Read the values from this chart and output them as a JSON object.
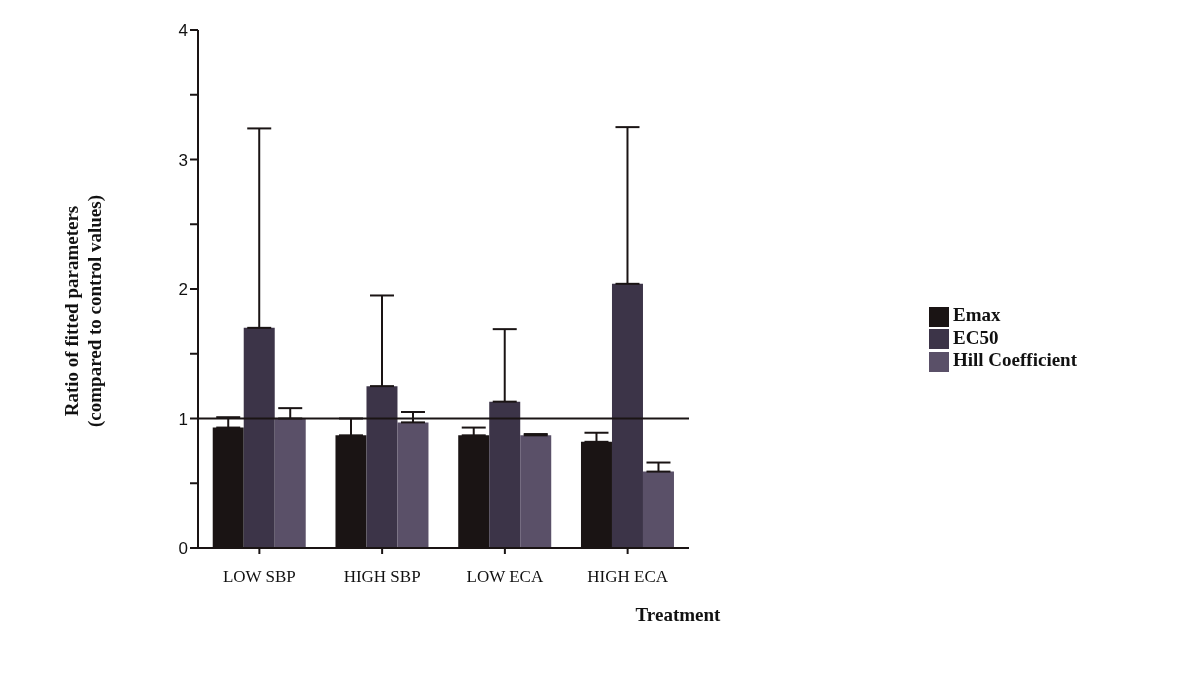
{
  "chart_data": {
    "type": "bar",
    "xlabel": "Treatment",
    "ylabel": "Ratio of fitted parameters (compared to control values)",
    "categories": [
      "LOW SBP",
      "HIGH SBP",
      "LOW ECA",
      "HIGH ECA"
    ],
    "series": [
      {
        "name": "Emax",
        "color": "#1a1414",
        "values": [
          0.93,
          0.87,
          0.87,
          0.82
        ],
        "errors": [
          [
            0.93,
            1.01
          ],
          [
            0.87,
            1.0
          ],
          [
            0.87,
            0.93
          ],
          [
            0.82,
            0.89
          ]
        ]
      },
      {
        "name": "EC50",
        "color": "#3c3448",
        "values": [
          1.7,
          1.25,
          1.13,
          2.04
        ],
        "errors": [
          [
            1.7,
            3.24
          ],
          [
            1.25,
            1.95
          ],
          [
            1.13,
            1.69
          ],
          [
            2.04,
            3.25
          ]
        ]
      },
      {
        "name": "Hill Coefficient",
        "color": "#5a5068",
        "values": [
          1.0,
          0.97,
          0.87,
          0.59
        ],
        "errors": [
          [
            1.0,
            1.08
          ],
          [
            0.97,
            1.05
          ],
          [
            0.87,
            0.88
          ],
          [
            0.59,
            0.66
          ]
        ]
      }
    ],
    "ylim": [
      0,
      4
    ],
    "yticks": [
      0,
      {
        "value": 0.5,
        "label": null
      },
      1,
      {
        "value": 1.5,
        "label": null
      },
      2,
      {
        "value": 2.5,
        "label": null
      },
      3,
      {
        "value": 3.5,
        "label": null
      },
      4
    ],
    "ref_lines": [
      {
        "axis": "y",
        "value": 1,
        "label": null,
        "color": "#1a1414"
      }
    ],
    "grid": false,
    "legend": "right"
  }
}
